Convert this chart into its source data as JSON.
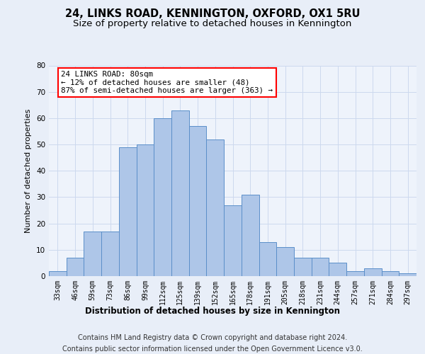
{
  "title": "24, LINKS ROAD, KENNINGTON, OXFORD, OX1 5RU",
  "subtitle": "Size of property relative to detached houses in Kennington",
  "xlabel": "Distribution of detached houses by size in Kennington",
  "ylabel": "Number of detached properties",
  "bar_labels": [
    "33sqm",
    "46sqm",
    "59sqm",
    "73sqm",
    "86sqm",
    "99sqm",
    "112sqm",
    "125sqm",
    "139sqm",
    "152sqm",
    "165sqm",
    "178sqm",
    "191sqm",
    "205sqm",
    "218sqm",
    "231sqm",
    "244sqm",
    "257sqm",
    "271sqm",
    "284sqm",
    "297sqm"
  ],
  "bar_values": [
    2,
    7,
    17,
    17,
    49,
    50,
    60,
    63,
    57,
    52,
    27,
    31,
    13,
    11,
    7,
    7,
    5,
    2,
    3,
    2,
    1
  ],
  "bar_color": "#aec6e8",
  "bar_edge_color": "#5b8fc9",
  "annotation_text": "24 LINKS ROAD: 80sqm\n← 12% of detached houses are smaller (48)\n87% of semi-detached houses are larger (363) →",
  "annotation_box_color": "white",
  "annotation_box_edge_color": "red",
  "ylim_max": 80,
  "yticks": [
    0,
    10,
    20,
    30,
    40,
    50,
    60,
    70,
    80
  ],
  "grid_color": "#ccd9ee",
  "bg_color": "#e8eef8",
  "plot_bg_color": "#eef3fb",
  "footer1": "Contains HM Land Registry data © Crown copyright and database right 2024.",
  "footer2": "Contains public sector information licensed under the Open Government Licence v3.0.",
  "title_fontsize": 10.5,
  "subtitle_fontsize": 9.5,
  "annotation_fontsize": 7.8,
  "footer_fontsize": 7.0,
  "ylabel_fontsize": 8.0,
  "xlabel_fontsize": 8.5,
  "tick_fontsize": 7.0,
  "ytick_fontsize": 7.5
}
